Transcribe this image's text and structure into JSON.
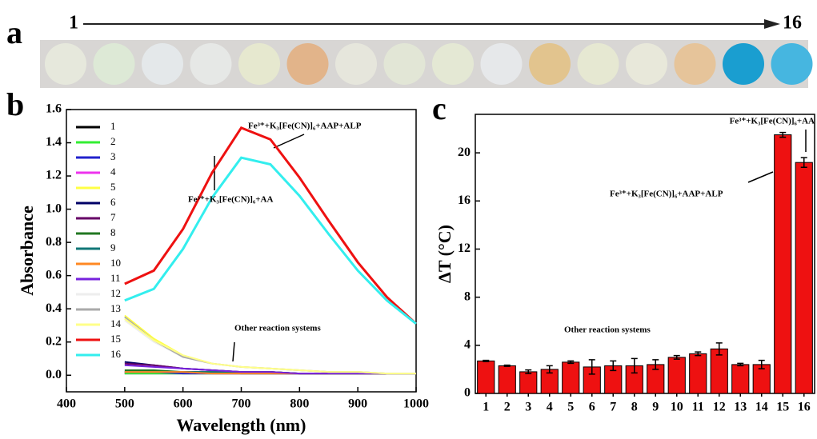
{
  "panels": {
    "a": {
      "label": "a",
      "start": "1",
      "end": "16"
    },
    "b": {
      "label": "b"
    },
    "c": {
      "label": "c"
    }
  },
  "chart_data": [
    {
      "type": "line",
      "x_label": "Wavelength (nm)",
      "y_label": "Absorbance",
      "x": [
        500,
        550,
        600,
        650,
        700,
        750,
        800,
        850,
        900,
        950,
        1000
      ],
      "xlim": [
        400,
        1000
      ],
      "xticks": [
        400,
        500,
        600,
        700,
        800,
        900,
        1000
      ],
      "ylim": [
        -0.1,
        1.6
      ],
      "yticks": [
        {
          "value": 0,
          "label": "0.0"
        },
        0.2,
        0.4,
        0.6,
        0.8,
        {
          "value": 1,
          "label": "1.0"
        },
        1.2,
        1.4,
        1.6
      ],
      "annotations": [
        "Fe³⁺+K₃[Fe(CN)]₆+AAP+ALP",
        "Fe³⁺+K₃[Fe(CN)]₆+AA",
        "Other reaction systems"
      ],
      "series": [
        {
          "name": "1",
          "color": "#000000",
          "values": [
            0.01,
            0.01,
            0.01,
            0.01,
            0.01,
            0.01,
            0.01,
            0.01,
            0.01,
            0.01,
            0.01
          ]
        },
        {
          "name": "2",
          "color": "#33ee33",
          "values": [
            0.01,
            0.01,
            0.01,
            0.01,
            0.01,
            0.01,
            0.01,
            0.01,
            0.01,
            0.01,
            0.01
          ]
        },
        {
          "name": "3",
          "color": "#2222cc",
          "values": [
            0.02,
            0.02,
            0.01,
            0.01,
            0.01,
            0.01,
            0.01,
            0.01,
            0.01,
            0.01,
            0.01
          ]
        },
        {
          "name": "4",
          "color": "#ee33ee",
          "values": [
            0.02,
            0.02,
            0.02,
            0.01,
            0.01,
            0.01,
            0.01,
            0.01,
            0.01,
            0.01,
            0.01
          ]
        },
        {
          "name": "5",
          "color": "#ffff44",
          "values": [
            0.36,
            0.22,
            0.12,
            0.07,
            0.05,
            0.04,
            0.03,
            0.02,
            0.02,
            0.01,
            0.01
          ]
        },
        {
          "name": "6",
          "color": "#000066",
          "values": [
            0.08,
            0.06,
            0.04,
            0.03,
            0.02,
            0.02,
            0.01,
            0.01,
            0.01,
            0.01,
            0.01
          ]
        },
        {
          "name": "7",
          "color": "#660066",
          "values": [
            0.07,
            0.06,
            0.04,
            0.03,
            0.02,
            0.02,
            0.01,
            0.01,
            0.01,
            0.01,
            0.01
          ]
        },
        {
          "name": "8",
          "color": "#227722",
          "values": [
            0.03,
            0.03,
            0.02,
            0.02,
            0.02,
            0.02,
            0.01,
            0.01,
            0.01,
            0.01,
            0.01
          ]
        },
        {
          "name": "9",
          "color": "#117777",
          "values": [
            0.02,
            0.02,
            0.02,
            0.02,
            0.01,
            0.01,
            0.01,
            0.01,
            0.01,
            0.01,
            0.01
          ]
        },
        {
          "name": "10",
          "color": "#ff8822",
          "values": [
            0.02,
            0.02,
            0.02,
            0.01,
            0.01,
            0.01,
            0.01,
            0.01,
            0.01,
            0.01,
            0.01
          ]
        },
        {
          "name": "11",
          "color": "#7722dd",
          "values": [
            0.06,
            0.05,
            0.04,
            0.03,
            0.02,
            0.02,
            0.01,
            0.01,
            0.01,
            0.01,
            0.01
          ]
        },
        {
          "name": "12",
          "color": "#eeeeee",
          "values": [
            0.33,
            0.2,
            0.11,
            0.07,
            0.05,
            0.04,
            0.03,
            0.02,
            0.02,
            0.01,
            0.01
          ]
        },
        {
          "name": "13",
          "color": "#aaaaaa",
          "values": [
            0.35,
            0.21,
            0.11,
            0.07,
            0.05,
            0.04,
            0.03,
            0.02,
            0.02,
            0.01,
            0.01
          ]
        },
        {
          "name": "14",
          "color": "#ffff88",
          "values": [
            0.34,
            0.21,
            0.12,
            0.07,
            0.05,
            0.04,
            0.03,
            0.02,
            0.02,
            0.01,
            0.01
          ]
        },
        {
          "name": "15",
          "color": "#ee1111",
          "values": [
            0.55,
            0.63,
            0.88,
            1.22,
            1.49,
            1.42,
            1.19,
            0.93,
            0.68,
            0.47,
            0.31
          ]
        },
        {
          "name": "16",
          "color": "#33eeee",
          "values": [
            0.45,
            0.52,
            0.76,
            1.07,
            1.31,
            1.27,
            1.08,
            0.85,
            0.63,
            0.45,
            0.31
          ]
        }
      ]
    },
    {
      "type": "bar",
      "y_label": "ΔT (°C)",
      "categories": [
        "1",
        "2",
        "3",
        "4",
        "5",
        "6",
        "7",
        "8",
        "9",
        "10",
        "11",
        "12",
        "13",
        "14",
        "15",
        "16"
      ],
      "values": [
        2.7,
        2.3,
        1.8,
        2.0,
        2.6,
        2.2,
        2.3,
        2.3,
        2.4,
        3.0,
        3.3,
        3.7,
        2.4,
        2.4,
        21.5,
        19.2
      ],
      "errors": [
        0.05,
        0.05,
        0.15,
        0.3,
        0.1,
        0.6,
        0.4,
        0.6,
        0.4,
        0.15,
        0.15,
        0.5,
        0.1,
        0.35,
        0.2,
        0.4
      ],
      "color": "#ee1111",
      "ylim": [
        0,
        23.2
      ],
      "yticks": [
        0,
        4,
        8,
        12,
        16,
        20
      ],
      "annotations": [
        "Fe³⁺+K₃[Fe(CN)]₆+AA",
        "Fe³⁺+K₃[Fe(CN)]₆+AAP+ALP",
        "Other reaction systems"
      ]
    }
  ]
}
